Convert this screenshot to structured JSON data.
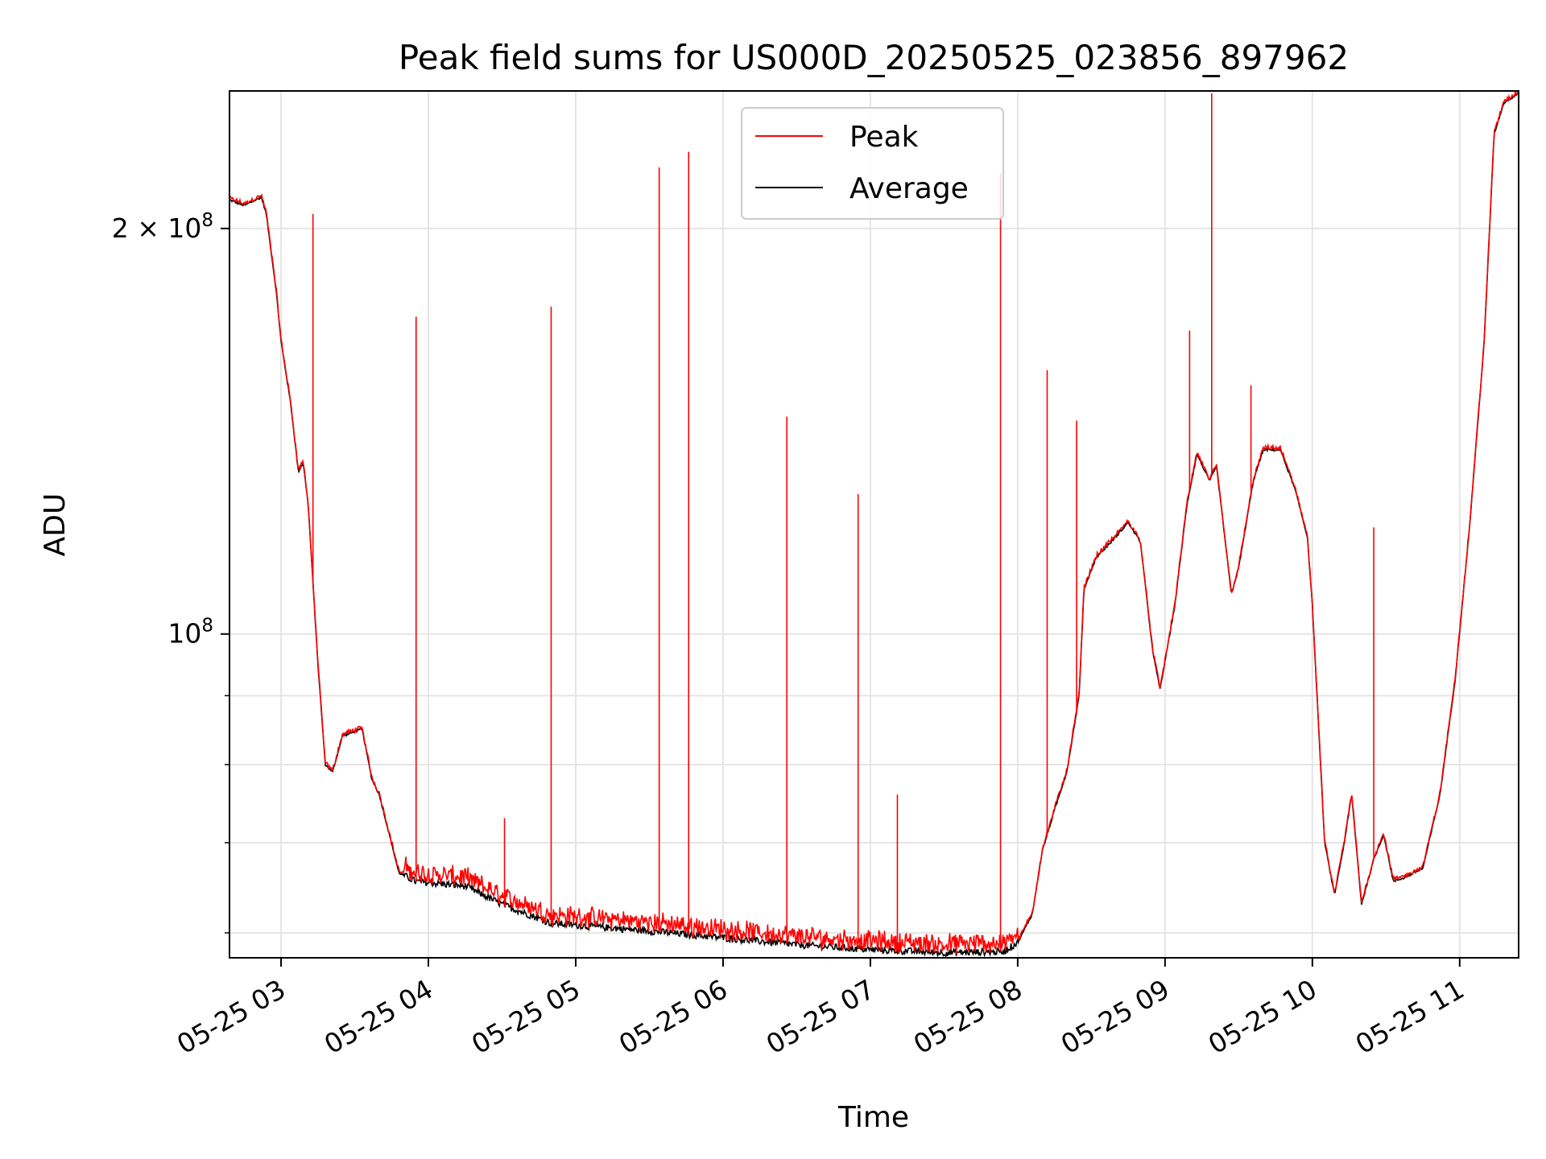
{
  "chart_data": {
    "type": "line",
    "title": "Peak field sums for US000D_20250525_023856_897962",
    "xlabel": "Time",
    "ylabel": "ADU",
    "y_scale": "log",
    "ylim": [
      57500000,
      253000000
    ],
    "xlim": [
      "2025-05-25 02:39",
      "2025-05-25 11:24"
    ],
    "x_ticks": [
      {
        "t": "2025-05-25 03:00",
        "label": "05-25 03"
      },
      {
        "t": "2025-05-25 04:00",
        "label": "05-25 04"
      },
      {
        "t": "2025-05-25 05:00",
        "label": "05-25 05"
      },
      {
        "t": "2025-05-25 06:00",
        "label": "05-25 06"
      },
      {
        "t": "2025-05-25 07:00",
        "label": "05-25 07"
      },
      {
        "t": "2025-05-25 08:00",
        "label": "05-25 08"
      },
      {
        "t": "2025-05-25 09:00",
        "label": "05-25 09"
      },
      {
        "t": "2025-05-25 10:00",
        "label": "05-25 10"
      },
      {
        "t": "2025-05-25 11:00",
        "label": "05-25 11"
      }
    ],
    "y_major_ticks": [
      {
        "v": 100000000,
        "base": "10",
        "exp": "8",
        "mult": ""
      },
      {
        "v": 200000000,
        "base": "10",
        "exp": "8",
        "mult": "2 × "
      }
    ],
    "y_minor_gridlines": [
      60000000,
      70000000,
      80000000,
      90000000
    ],
    "grid": true,
    "legend_position": "top-center",
    "series": [
      {
        "name": "Average",
        "color": "#000000",
        "points": [
          [
            "2025-05-25 02:39",
            210000000
          ],
          [
            "2025-05-25 02:45",
            208000000
          ],
          [
            "2025-05-25 02:52",
            211000000
          ],
          [
            "2025-05-25 02:54",
            205000000
          ],
          [
            "2025-05-25 02:58",
            180000000
          ],
          [
            "2025-05-25 03:00",
            165000000
          ],
          [
            "2025-05-25 03:04",
            148000000
          ],
          [
            "2025-05-25 03:07",
            132000000
          ],
          [
            "2025-05-25 03:09",
            134000000
          ],
          [
            "2025-05-25 03:11",
            125000000
          ],
          [
            "2025-05-25 03:15",
            95000000
          ],
          [
            "2025-05-25 03:18",
            80000000
          ],
          [
            "2025-05-25 03:21",
            79000000
          ],
          [
            "2025-05-25 03:25",
            84000000
          ],
          [
            "2025-05-25 03:33",
            85000000
          ],
          [
            "2025-05-25 03:37",
            78000000
          ],
          [
            "2025-05-25 03:40",
            76000000
          ],
          [
            "2025-05-25 03:48",
            66500000
          ],
          [
            "2025-05-25 03:55",
            65500000
          ],
          [
            "2025-05-25 04:15",
            65000000
          ],
          [
            "2025-05-25 04:30",
            63000000
          ],
          [
            "2025-05-25 04:45",
            61500000
          ],
          [
            "2025-05-25 04:50",
            61000000
          ],
          [
            "2025-05-25 05:30",
            60200000
          ],
          [
            "2025-05-25 06:00",
            59500000
          ],
          [
            "2025-05-25 06:30",
            58800000
          ],
          [
            "2025-05-25 07:00",
            58300000
          ],
          [
            "2025-05-25 07:30",
            58000000
          ],
          [
            "2025-05-25 07:54",
            58100000
          ],
          [
            "2025-05-25 08:00",
            59000000
          ],
          [
            "2025-05-25 08:06",
            62000000
          ],
          [
            "2025-05-25 08:10",
            69000000
          ],
          [
            "2025-05-25 08:15",
            74000000
          ],
          [
            "2025-05-25 08:20",
            79000000
          ],
          [
            "2025-05-25 08:25",
            90000000
          ],
          [
            "2025-05-25 08:27",
            108000000
          ],
          [
            "2025-05-25 08:32",
            114000000
          ],
          [
            "2025-05-25 08:38",
            117000000
          ],
          [
            "2025-05-25 08:45",
            121000000
          ],
          [
            "2025-05-25 08:50",
            117000000
          ],
          [
            "2025-05-25 08:55",
            97000000
          ],
          [
            "2025-05-25 08:58",
            91000000
          ],
          [
            "2025-05-25 09:04",
            105000000
          ],
          [
            "2025-05-25 09:09",
            125000000
          ],
          [
            "2025-05-25 09:13",
            136000000
          ],
          [
            "2025-05-25 09:18",
            130000000
          ],
          [
            "2025-05-25 09:21",
            133000000
          ],
          [
            "2025-05-25 09:27",
            107000000
          ],
          [
            "2025-05-25 09:30",
            112000000
          ],
          [
            "2025-05-25 09:36",
            130000000
          ],
          [
            "2025-05-25 09:40",
            137000000
          ],
          [
            "2025-05-25 09:47",
            137000000
          ],
          [
            "2025-05-25 09:53",
            128000000
          ],
          [
            "2025-05-25 09:58",
            118000000
          ],
          [
            "2025-05-25 10:00",
            105000000
          ],
          [
            "2025-05-25 10:05",
            70000000
          ],
          [
            "2025-05-25 10:09",
            64000000
          ],
          [
            "2025-05-25 10:13",
            70000000
          ],
          [
            "2025-05-25 10:16",
            76000000
          ],
          [
            "2025-05-25 10:20",
            63000000
          ],
          [
            "2025-05-25 10:25",
            68000000
          ],
          [
            "2025-05-25 10:29",
            71000000
          ],
          [
            "2025-05-25 10:33",
            65500000
          ],
          [
            "2025-05-25 10:38",
            66000000
          ],
          [
            "2025-05-25 10:45",
            67000000
          ],
          [
            "2025-05-25 10:52",
            76000000
          ],
          [
            "2025-05-25 10:58",
            92000000
          ],
          [
            "2025-05-25 11:04",
            120000000
          ],
          [
            "2025-05-25 11:10",
            165000000
          ],
          [
            "2025-05-25 11:14",
            235000000
          ],
          [
            "2025-05-25 11:18",
            248000000
          ],
          [
            "2025-05-25 11:24",
            252000000
          ]
        ]
      },
      {
        "name": "Peak",
        "color": "#ff0000",
        "spikes": [
          [
            "2025-05-25 03:13",
            205000000
          ],
          [
            "2025-05-25 03:55",
            172000000
          ],
          [
            "2025-05-25 04:31",
            73000000
          ],
          [
            "2025-05-25 04:50",
            175000000
          ],
          [
            "2025-05-25 05:34",
            222000000
          ],
          [
            "2025-05-25 05:46",
            228000000
          ],
          [
            "2025-05-25 06:26",
            145000000
          ],
          [
            "2025-05-25 06:55",
            127000000
          ],
          [
            "2025-05-25 07:11",
            76000000
          ],
          [
            "2025-05-25 07:53",
            220000000
          ],
          [
            "2025-05-25 08:12",
            157000000
          ],
          [
            "2025-05-25 08:24",
            144000000
          ],
          [
            "2025-05-25 09:10",
            168000000
          ],
          [
            "2025-05-25 09:19",
            252000000
          ],
          [
            "2025-05-25 09:35",
            153000000
          ],
          [
            "2025-05-25 10:25",
            120000000
          ]
        ]
      }
    ]
  }
}
